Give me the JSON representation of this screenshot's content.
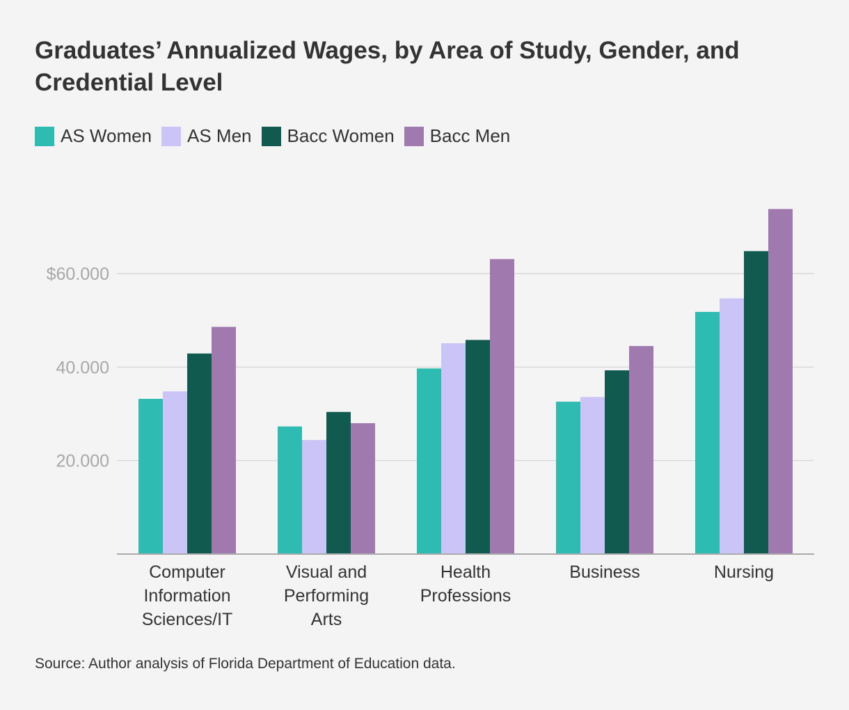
{
  "title": "Graduates’ Annualized Wages, by Area of Study, Gender, and Credential Level",
  "source": "Source: Author analysis of Florida Department of Education data.",
  "colors": {
    "background": "#f4f4f4",
    "gridline": "#d9d9d9",
    "axis": "#aaaaaa",
    "tick_text": "#a8a8a8",
    "text": "#333333"
  },
  "chart_data": {
    "type": "bar",
    "title": "Graduates’ Annualized Wages, by Area of Study, Gender, and Credential Level",
    "xlabel": "",
    "ylabel": "",
    "ylim": [
      0,
      75000
    ],
    "grid": true,
    "legend_position": "top-left",
    "yticks": [
      {
        "value": 20000,
        "label": "20.000"
      },
      {
        "value": 40000,
        "label": "40.000"
      },
      {
        "value": 60000,
        "label": "$60.000"
      }
    ],
    "categories": [
      [
        "Computer",
        "Information",
        "Sciences/IT"
      ],
      [
        "Visual and",
        "Performing",
        "Arts"
      ],
      [
        "Health",
        "Professions"
      ],
      [
        "Business"
      ],
      [
        "Nursing"
      ]
    ],
    "series": [
      {
        "name": "AS Women",
        "color": "#2ebbb1",
        "values": [
          33200,
          27300,
          39700,
          32600,
          51800
        ]
      },
      {
        "name": "AS Men",
        "color": "#cbc4f7",
        "values": [
          34800,
          24400,
          45100,
          33600,
          54700
        ]
      },
      {
        "name": "Bacc Women",
        "color": "#115a4f",
        "values": [
          42900,
          30400,
          45800,
          39300,
          64800
        ]
      },
      {
        "name": "Bacc Men",
        "color": "#a079ae",
        "values": [
          48600,
          28000,
          63100,
          44500,
          73800
        ]
      }
    ]
  }
}
